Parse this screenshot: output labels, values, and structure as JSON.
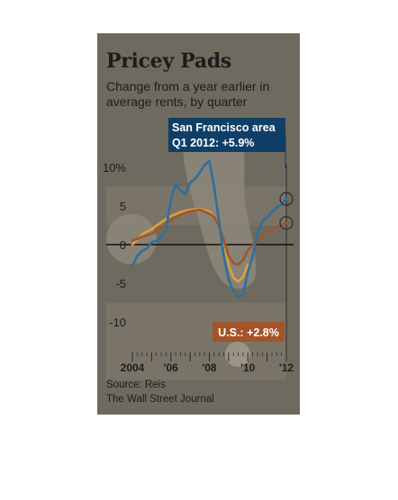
{
  "chart_data": {
    "type": "line",
    "title": "Pricey Pads",
    "subtitle": "Change from a year earlier in average rents, by quarter",
    "xlabel": "",
    "ylabel": "",
    "x_range": [
      2004.0,
      2012.0
    ],
    "ylim": [
      -15,
      12
    ],
    "y_ticks": [
      {
        "value": 10,
        "label": "10%"
      },
      {
        "value": 5,
        "label": "5"
      },
      {
        "value": 0,
        "label": "0"
      },
      {
        "value": -5,
        "label": "-5"
      },
      {
        "value": -10,
        "label": "-10"
      }
    ],
    "x_ticks": [
      {
        "value": 2004,
        "label": "2004"
      },
      {
        "value": 2006,
        "label": "'06"
      },
      {
        "value": 2008,
        "label": "'08"
      },
      {
        "value": 2010,
        "label": "'10"
      },
      {
        "value": 2012,
        "label": "'12"
      }
    ],
    "series": [
      {
        "name": "San Francisco area",
        "color": "#2e6f9e",
        "x": [
          2004.0,
          2004.25,
          2004.5,
          2004.75,
          2005.0,
          2005.25,
          2005.5,
          2005.75,
          2006.0,
          2006.25,
          2006.5,
          2006.75,
          2007.0,
          2007.25,
          2007.5,
          2007.75,
          2008.0,
          2008.25,
          2008.5,
          2008.75,
          2009.0,
          2009.25,
          2009.5,
          2009.75,
          2010.0,
          2010.25,
          2010.5,
          2010.75,
          2011.0,
          2011.25,
          2011.5,
          2011.75,
          2012.0
        ],
        "values": [
          -2.8,
          -1.5,
          -0.8,
          -0.5,
          0.3,
          0.5,
          1.0,
          2.0,
          5.8,
          7.8,
          7.0,
          6.5,
          8.0,
          8.5,
          9.3,
          10.3,
          10.8,
          7.5,
          3.0,
          -1.5,
          -4.5,
          -6.0,
          -6.8,
          -6.5,
          -3.5,
          -1.5,
          1.5,
          3.0,
          3.5,
          4.2,
          4.8,
          5.2,
          5.9
        ]
      },
      {
        "name": "U.S.",
        "color": "#a3542a",
        "x": [
          2004.0,
          2004.5,
          2005.0,
          2005.5,
          2006.0,
          2006.5,
          2007.0,
          2007.5,
          2008.0,
          2008.25,
          2008.5,
          2008.75,
          2009.0,
          2009.25,
          2009.5,
          2009.75,
          2010.0,
          2010.5,
          2011.0,
          2011.5,
          2012.0
        ],
        "values": [
          0.5,
          1.0,
          1.4,
          2.2,
          3.2,
          3.9,
          4.3,
          4.5,
          4.0,
          3.6,
          2.4,
          0.6,
          -1.5,
          -2.4,
          -2.6,
          -2.0,
          -0.7,
          0.5,
          1.6,
          2.3,
          2.8
        ]
      },
      {
        "name": "",
        "color": "#d9a23a",
        "x": [
          2004.0,
          2004.5,
          2005.0,
          2005.5,
          2006.0,
          2006.5,
          2007.0,
          2007.5,
          2008.0,
          2008.25,
          2008.5,
          2008.75,
          2009.0,
          2009.25,
          2009.5,
          2009.75,
          2010.0
        ],
        "values": [
          0.0,
          1.3,
          2.0,
          2.9,
          3.7,
          4.2,
          4.5,
          4.6,
          4.3,
          3.7,
          2.4,
          0.3,
          -2.6,
          -4.3,
          -4.8,
          -4.2,
          -2.6
        ]
      }
    ],
    "annotations": [
      {
        "text": "San Francisco area",
        "text2": "Q1 2012:  +5.9%",
        "color": "#0f3f66"
      },
      {
        "text": "U.S.: +2.8%",
        "color": "#a3542a"
      }
    ],
    "source": "Source: Reis",
    "publisher": "The Wall Street Journal",
    "grid": false,
    "legend": "none"
  }
}
